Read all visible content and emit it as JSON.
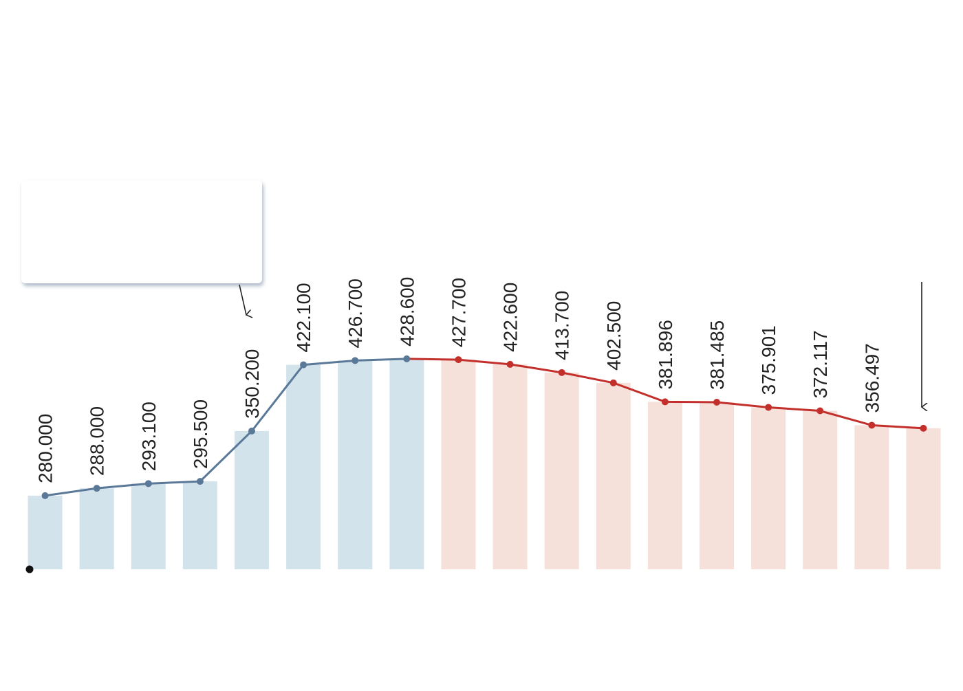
{
  "chart_data": {
    "type": "bar-line",
    "values": [
      280,
      288,
      293.1,
      295.5,
      350.2,
      422.1,
      426.7,
      428.6,
      427.7,
      422.6,
      413.7,
      402.5,
      381.896,
      381.485,
      375.901,
      372.117,
      356.497,
      353.2
    ],
    "value_labels": [
      "280.000",
      "288.000",
      "293.100",
      "295.500",
      "350.200",
      "422.100",
      "426.700",
      "428.600",
      "427.700",
      "422.600",
      "413.700",
      "402.500",
      "381.896",
      "381.485",
      "375.901",
      "372.117",
      "356.497",
      null
    ],
    "ylim": [
      200,
      520
    ],
    "forecast_start": 8,
    "bar_colors": [
      "#d3e3ec",
      "#f5e0da"
    ],
    "line_colors": [
      "#5a7898",
      "#c3302c"
    ]
  }
}
